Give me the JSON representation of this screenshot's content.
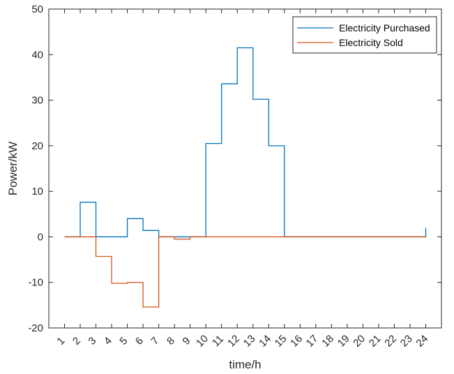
{
  "chart_data": {
    "type": "line",
    "step": true,
    "title": "",
    "xlabel": "time/h",
    "ylabel": "Power/kW",
    "xlim": [
      0,
      25
    ],
    "ylim": [
      -20,
      50
    ],
    "yticks": [
      -20,
      -10,
      0,
      10,
      20,
      30,
      40,
      50
    ],
    "categories": [
      "1",
      "2",
      "3",
      "4",
      "5",
      "6",
      "7",
      "8",
      "9",
      "10",
      "11",
      "12",
      "13",
      "14",
      "15",
      "16",
      "17",
      "18",
      "19",
      "20",
      "21",
      "22",
      "23",
      "24"
    ],
    "grid": false,
    "legend_position": "top-right",
    "series": [
      {
        "name": "Electricity Purchased",
        "color": "#0072BD",
        "values": [
          0,
          7.6,
          0,
          0,
          4,
          1.4,
          0,
          0,
          0,
          20.5,
          33.6,
          41.5,
          30.2,
          20,
          0,
          0,
          0,
          0,
          0,
          0,
          0,
          0,
          0,
          2
        ]
      },
      {
        "name": "Electricity Sold",
        "color": "#D95319",
        "values": [
          0,
          0,
          -4.3,
          -10.2,
          -10,
          -15.4,
          0,
          -0.5,
          0,
          0,
          0,
          0,
          0,
          0,
          0,
          0,
          0,
          0,
          0,
          0,
          0,
          0,
          0,
          0
        ]
      }
    ]
  }
}
